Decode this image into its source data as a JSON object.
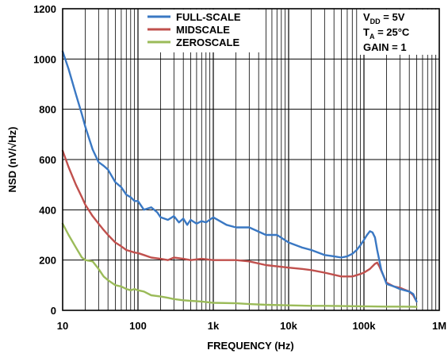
{
  "chart_data": {
    "type": "line",
    "title": "",
    "xlabel": "FREQUENCY (Hz)",
    "ylabel": "NSD (nV/√Hz)",
    "x_scale": "log",
    "xlim": [
      10,
      1000000
    ],
    "ylim": [
      0,
      1200
    ],
    "grid": true,
    "legend_position": "top-center",
    "x_ticks": [
      {
        "value": 10,
        "label": "10"
      },
      {
        "value": 100,
        "label": "100"
      },
      {
        "value": 1000,
        "label": "1k"
      },
      {
        "value": 10000,
        "label": "10k"
      },
      {
        "value": 100000,
        "label": "100k"
      },
      {
        "value": 1000000,
        "label": "1M"
      }
    ],
    "y_ticks": [
      {
        "value": 0,
        "label": "0"
      },
      {
        "value": 200,
        "label": "200"
      },
      {
        "value": 400,
        "label": "400"
      },
      {
        "value": 600,
        "label": "600"
      },
      {
        "value": 800,
        "label": "800"
      },
      {
        "value": 1000,
        "label": "1000"
      },
      {
        "value": 1200,
        "label": "1200"
      }
    ],
    "annotations": {
      "vdd": {
        "main": "V",
        "sub": "DD",
        "rest": " = 5V"
      },
      "ta": {
        "main": "T",
        "sub": "A",
        "rest": " = 25°C"
      },
      "gain": "GAIN = 1"
    },
    "series": [
      {
        "name": "FULL-SCALE",
        "color": "#3a78c3",
        "x": [
          10,
          12,
          15,
          18,
          20,
          25,
          30,
          35,
          40,
          50,
          60,
          70,
          80,
          90,
          100,
          120,
          150,
          180,
          200,
          250,
          300,
          350,
          400,
          450,
          500,
          600,
          700,
          800,
          1000,
          1500,
          2000,
          3000,
          5000,
          7000,
          10000,
          15000,
          20000,
          30000,
          40000,
          50000,
          60000,
          70000,
          80000,
          90000,
          100000,
          110000,
          120000,
          130000,
          140000,
          150000,
          170000,
          200000,
          250000,
          300000,
          400000,
          450000,
          500000
        ],
        "y": [
          1030,
          960,
          860,
          780,
          730,
          640,
          590,
          575,
          560,
          510,
          490,
          460,
          450,
          435,
          435,
          400,
          410,
          390,
          370,
          360,
          375,
          350,
          365,
          340,
          360,
          345,
          355,
          350,
          370,
          340,
          330,
          330,
          300,
          300,
          270,
          250,
          240,
          220,
          215,
          210,
          215,
          225,
          240,
          260,
          280,
          300,
          315,
          310,
          290,
          240,
          160,
          105,
          95,
          85,
          75,
          65,
          35
        ]
      },
      {
        "name": "MIDSCALE",
        "color": "#c0504d",
        "x": [
          10,
          12,
          15,
          18,
          20,
          25,
          30,
          35,
          40,
          50,
          60,
          70,
          80,
          90,
          100,
          120,
          150,
          200,
          250,
          300,
          400,
          500,
          700,
          1000,
          1500,
          2000,
          3000,
          5000,
          10000,
          15000,
          20000,
          30000,
          50000,
          70000,
          80000,
          90000,
          100000,
          120000,
          140000,
          150000,
          160000,
          180000,
          200000,
          250000,
          300000,
          400000,
          450000,
          500000
        ],
        "y": [
          635,
          570,
          500,
          450,
          420,
          375,
          345,
          320,
          300,
          270,
          255,
          240,
          235,
          230,
          228,
          220,
          210,
          205,
          200,
          210,
          205,
          200,
          205,
          200,
          200,
          200,
          195,
          180,
          170,
          165,
          160,
          150,
          135,
          135,
          140,
          145,
          150,
          165,
          185,
          190,
          175,
          140,
          110,
          95,
          90,
          75,
          60,
          35
        ]
      },
      {
        "name": "ZEROSCALE",
        "color": "#9bbb59",
        "x": [
          10,
          12,
          15,
          18,
          20,
          25,
          30,
          35,
          40,
          50,
          60,
          70,
          80,
          90,
          100,
          120,
          150,
          200,
          250,
          300,
          400,
          500,
          700,
          1000,
          2000,
          3000,
          5000,
          10000,
          20000,
          30000,
          50000,
          100000,
          200000,
          300000,
          500000
        ],
        "y": [
          345,
          300,
          250,
          210,
          200,
          195,
          165,
          135,
          120,
          100,
          95,
          85,
          80,
          85,
          80,
          75,
          60,
          55,
          50,
          45,
          40,
          38,
          35,
          30,
          28,
          25,
          22,
          20,
          18,
          18,
          17,
          16,
          15,
          15,
          14
        ]
      }
    ]
  }
}
